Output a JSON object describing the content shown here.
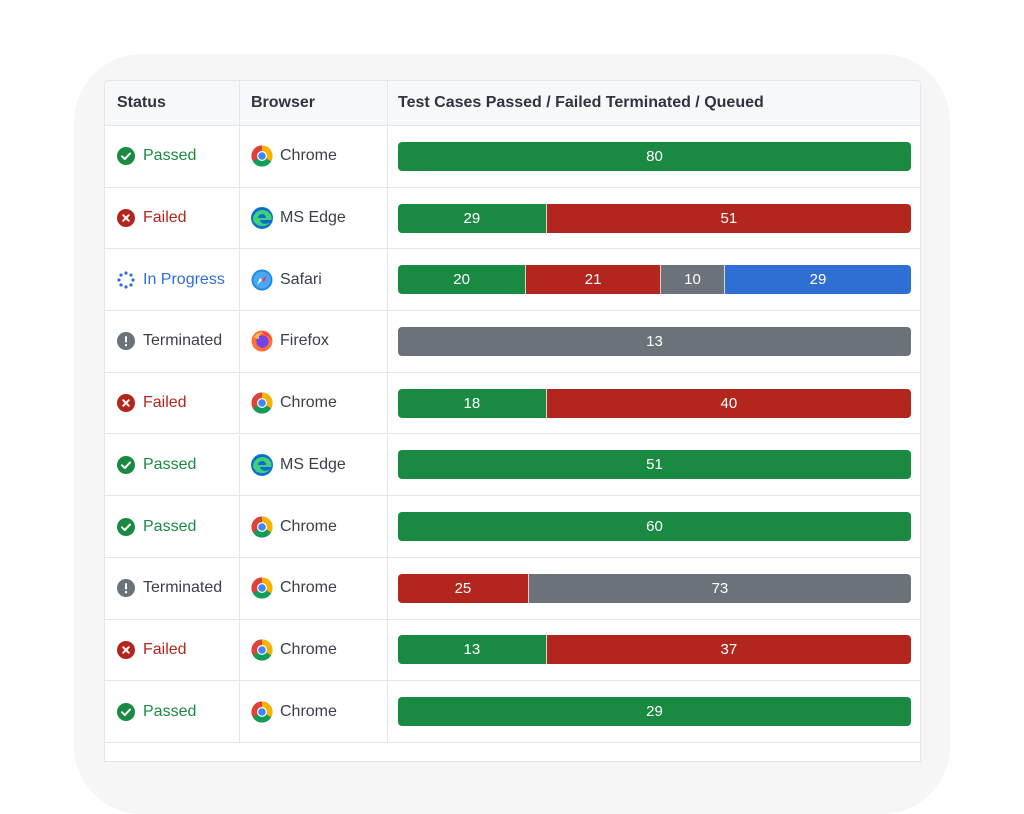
{
  "header": {
    "status": "Status",
    "browser": "Browser",
    "progress": "Test Cases Passed / Failed Terminated / Queued"
  },
  "colors": {
    "passed": "#1a8a43",
    "failed": "#b3261e",
    "terminated": "#6b7279",
    "queued": "#2f6fd4",
    "in_progress": "#2f6fd4"
  },
  "rows": [
    {
      "status": "Passed",
      "status_type": "passed",
      "browser": "Chrome",
      "browser_icon": "chrome-icon",
      "segments": [
        {
          "type": "passed",
          "value": 80
        }
      ]
    },
    {
      "status": "Failed",
      "status_type": "failed",
      "browser": "MS Edge",
      "browser_icon": "edge-icon",
      "segments": [
        {
          "type": "passed",
          "value": 29
        },
        {
          "type": "failed",
          "value": 51
        }
      ]
    },
    {
      "status": "In Progress",
      "status_type": "in_progress",
      "browser": "Safari",
      "browser_icon": "safari-icon",
      "segments": [
        {
          "type": "passed",
          "value": 20
        },
        {
          "type": "failed",
          "value": 21
        },
        {
          "type": "terminated",
          "value": 10
        },
        {
          "type": "queued",
          "value": 29
        }
      ]
    },
    {
      "status": "Terminated",
      "status_type": "terminated",
      "browser": "Firefox",
      "browser_icon": "firefox-icon",
      "segments": [
        {
          "type": "terminated",
          "value": 13
        }
      ]
    },
    {
      "status": "Failed",
      "status_type": "failed",
      "browser": "Chrome",
      "browser_icon": "chrome-icon",
      "segments": [
        {
          "type": "passed",
          "value": 18
        },
        {
          "type": "failed",
          "value": 40
        }
      ]
    },
    {
      "status": "Passed",
      "status_type": "passed",
      "browser": "MS Edge",
      "browser_icon": "edge-icon",
      "segments": [
        {
          "type": "passed",
          "value": 51
        }
      ]
    },
    {
      "status": "Passed",
      "status_type": "passed",
      "browser": "Chrome",
      "browser_icon": "chrome-icon",
      "segments": [
        {
          "type": "passed",
          "value": 60
        }
      ]
    },
    {
      "status": "Terminated",
      "status_type": "terminated",
      "browser": "Chrome",
      "browser_icon": "chrome-icon",
      "segments": [
        {
          "type": "failed",
          "value": 25
        },
        {
          "type": "terminated",
          "value": 73
        }
      ]
    },
    {
      "status": "Failed",
      "status_type": "failed",
      "browser": "Chrome",
      "browser_icon": "chrome-icon",
      "segments": [
        {
          "type": "passed",
          "value": 13
        },
        {
          "type": "failed",
          "value": 37
        }
      ]
    },
    {
      "status": "Passed",
      "status_type": "passed",
      "browser": "Chrome",
      "browser_icon": "chrome-icon",
      "segments": [
        {
          "type": "passed",
          "value": 29
        }
      ]
    }
  ]
}
